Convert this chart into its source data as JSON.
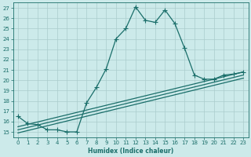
{
  "xlabel": "Humidex (Indice chaleur)",
  "ylabel": "",
  "xlim": [
    -0.5,
    23.5
  ],
  "ylim": [
    14.5,
    27.5
  ],
  "xticks": [
    0,
    1,
    2,
    3,
    4,
    5,
    6,
    7,
    8,
    9,
    10,
    11,
    12,
    13,
    14,
    15,
    16,
    17,
    18,
    19,
    20,
    21,
    22,
    23
  ],
  "yticks": [
    15,
    16,
    17,
    18,
    19,
    20,
    21,
    22,
    23,
    24,
    25,
    26,
    27
  ],
  "bg_color": "#cceaea",
  "grid_color": "#aacccc",
  "line_color": "#1a6e6a",
  "main_line": {
    "x": [
      0,
      1,
      2,
      3,
      4,
      5,
      6,
      7,
      8,
      9,
      10,
      11,
      12,
      13,
      14,
      15,
      16,
      17,
      18,
      19,
      20,
      21,
      22,
      23
    ],
    "y": [
      16.5,
      15.8,
      15.7,
      15.2,
      15.2,
      15.0,
      15.0,
      17.8,
      19.3,
      21.1,
      24.0,
      25.0,
      27.1,
      25.8,
      25.6,
      26.8,
      25.5,
      23.1,
      20.5,
      20.1,
      20.1,
      20.5,
      20.6,
      20.8
    ]
  },
  "linear_lines": [
    {
      "x0": 0,
      "y0": 15.5,
      "x1": 23,
      "y1": 20.8
    },
    {
      "x0": 0,
      "y0": 15.2,
      "x1": 23,
      "y1": 20.5
    },
    {
      "x0": 0,
      "y0": 14.9,
      "x1": 23,
      "y1": 20.2
    }
  ]
}
